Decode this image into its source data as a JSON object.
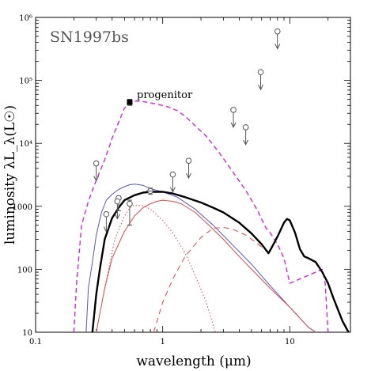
{
  "chart_data": {
    "type": "line",
    "object_label": "SN1997bs",
    "xlabel": "wavelength (μm)",
    "ylabel": "luminosity λL_λ(L☉)",
    "annotation": "progenitor",
    "x_scale": "log",
    "y_scale": "log",
    "xlim": [
      0.1,
      30
    ],
    "ylim": [
      10,
      1000000
    ],
    "grid": false,
    "x_ticks": [
      {
        "value": 0.1,
        "label": "0.1"
      },
      {
        "value": 1,
        "label": "1"
      },
      {
        "value": 10,
        "label": "10"
      }
    ],
    "y_ticks": [
      {
        "value": 10,
        "label": "10"
      },
      {
        "value": 100,
        "label": "100"
      },
      {
        "value": 1000,
        "label": "1000"
      },
      {
        "value": 10000,
        "label": "10⁴"
      },
      {
        "value": 100000,
        "label": "10⁵"
      },
      {
        "value": 1000000,
        "label": "10⁶"
      }
    ],
    "series": [
      {
        "color": "#dd22dd",
        "dash": "6,4",
        "width": 1.4,
        "points": [
          [
            0.2,
            10
          ],
          [
            0.21,
            60
          ],
          [
            0.23,
            500
          ],
          [
            0.26,
            1200
          ],
          [
            0.3,
            2600
          ],
          [
            0.35,
            5500
          ],
          [
            0.4,
            12000
          ],
          [
            0.46,
            24000
          ],
          [
            0.5,
            36000
          ],
          [
            0.55,
            45000
          ],
          [
            0.62,
            47000
          ],
          [
            0.7,
            46000
          ],
          [
            0.9,
            42000
          ],
          [
            1.1,
            38000
          ],
          [
            1.3,
            33000
          ],
          [
            1.5,
            27000
          ],
          [
            1.8,
            19000
          ],
          [
            2.2,
            13000
          ],
          [
            2.8,
            7000
          ],
          [
            3.5,
            3700
          ],
          [
            4.5,
            1800
          ],
          [
            5.5,
            900
          ],
          [
            6.5,
            450
          ],
          [
            7,
            380
          ],
          [
            8,
            250
          ],
          [
            9,
            150
          ],
          [
            10,
            60
          ],
          [
            14,
            80
          ],
          [
            18,
            100
          ],
          [
            19,
            60
          ],
          [
            20,
            10
          ]
        ]
      },
      {
        "color": "#5555cc",
        "dash": "",
        "width": 1,
        "points": [
          [
            0.25,
            10
          ],
          [
            0.26,
            50
          ],
          [
            0.28,
            130
          ],
          [
            0.3,
            350
          ],
          [
            0.33,
            800
          ],
          [
            0.36,
            1250
          ],
          [
            0.4,
            1550
          ],
          [
            0.45,
            1850
          ],
          [
            0.5,
            2050
          ],
          [
            0.55,
            2200
          ],
          [
            0.6,
            2250
          ],
          [
            0.7,
            2150
          ],
          [
            0.8,
            1900
          ],
          [
            1,
            1700
          ],
          [
            1.3,
            1400
          ],
          [
            1.8,
            900
          ],
          [
            2.5,
            500
          ],
          [
            3.5,
            250
          ],
          [
            5,
            120
          ],
          [
            7,
            55
          ],
          [
            10,
            25
          ],
          [
            14,
            12
          ],
          [
            16,
            10
          ]
        ]
      },
      {
        "color": "#ee4444",
        "dash": "",
        "width": 1,
        "points": [
          [
            0.3,
            10
          ],
          [
            0.35,
            50
          ],
          [
            0.4,
            150
          ],
          [
            0.5,
            400
          ],
          [
            0.6,
            700
          ],
          [
            0.7,
            950
          ],
          [
            0.8,
            1100
          ],
          [
            0.9,
            1200
          ],
          [
            1,
            1250
          ],
          [
            1.2,
            1200
          ],
          [
            1.4,
            1100
          ],
          [
            1.8,
            800
          ],
          [
            2.2,
            550
          ],
          [
            3,
            300
          ],
          [
            4,
            160
          ],
          [
            5,
            100
          ],
          [
            7,
            50
          ],
          [
            10,
            25
          ],
          [
            14,
            12
          ],
          [
            16,
            10
          ]
        ]
      },
      {
        "color": "#ee4444",
        "dash": "1.5,2.5",
        "width": 1,
        "points": [
          [
            0.35,
            50
          ],
          [
            0.42,
            300
          ],
          [
            0.5,
            700
          ],
          [
            0.55,
            950
          ],
          [
            0.6,
            1050
          ],
          [
            0.7,
            1020
          ],
          [
            0.8,
            900
          ],
          [
            1,
            600
          ],
          [
            1.2,
            380
          ],
          [
            1.5,
            180
          ],
          [
            1.8,
            80
          ],
          [
            2.2,
            30
          ],
          [
            2.6,
            10
          ]
        ]
      },
      {
        "color": "#ee4444",
        "dash": "7,5",
        "width": 1,
        "points": [
          [
            0.85,
            10
          ],
          [
            1,
            30
          ],
          [
            1.2,
            70
          ],
          [
            1.5,
            160
          ],
          [
            2,
            320
          ],
          [
            2.5,
            450
          ],
          [
            3,
            460
          ],
          [
            3.5,
            440
          ],
          [
            4.5,
            350
          ],
          [
            5.5,
            260
          ],
          [
            6.5,
            200
          ],
          [
            7,
            170
          ]
        ]
      },
      {
        "color": "#000000",
        "dash": "",
        "width": 2.4,
        "points": [
          [
            0.28,
            10
          ],
          [
            0.3,
            40
          ],
          [
            0.32,
            100
          ],
          [
            0.35,
            300
          ],
          [
            0.4,
            650
          ],
          [
            0.45,
            950
          ],
          [
            0.5,
            1250
          ],
          [
            0.6,
            1500
          ],
          [
            0.7,
            1650
          ],
          [
            0.8,
            1700
          ],
          [
            1,
            1700
          ],
          [
            1.2,
            1600
          ],
          [
            1.5,
            1400
          ],
          [
            2,
            1150
          ],
          [
            2.5,
            950
          ],
          [
            3,
            800
          ],
          [
            4,
            550
          ],
          [
            5,
            370
          ],
          [
            6,
            250
          ],
          [
            6.8,
            180
          ],
          [
            7.2,
            220
          ],
          [
            8,
            330
          ],
          [
            9,
            550
          ],
          [
            9.5,
            630
          ],
          [
            10,
            600
          ],
          [
            11,
            380
          ],
          [
            12,
            210
          ],
          [
            13,
            160
          ],
          [
            14,
            150
          ],
          [
            16,
            130
          ],
          [
            18,
            90
          ],
          [
            20,
            60
          ],
          [
            22,
            35
          ],
          [
            26,
            15
          ],
          [
            29,
            10
          ]
        ]
      }
    ],
    "measurements": [
      {
        "x": 0.55,
        "y": 1100,
        "err": [
          500,
          1250
        ],
        "marker": "circle"
      },
      {
        "x": 0.45,
        "y": 1350,
        "err": [
          850,
          1450
        ],
        "marker": "circle"
      },
      {
        "x": 0.8,
        "y": 1750,
        "err": [
          1550,
          1950
        ],
        "marker": "circle-cross"
      },
      {
        "x": 0.55,
        "y": 45000,
        "err": [
          40000,
          50000
        ],
        "marker": "square"
      }
    ],
    "upper_limits": [
      {
        "x": 0.3,
        "y": 4800
      },
      {
        "x": 0.36,
        "y": 750
      },
      {
        "x": 0.44,
        "y": 1200
      },
      {
        "x": 1.2,
        "y": 3200
      },
      {
        "x": 1.6,
        "y": 5300
      },
      {
        "x": 3.6,
        "y": 34000
      },
      {
        "x": 4.5,
        "y": 18000
      },
      {
        "x": 5.9,
        "y": 135000
      },
      {
        "x": 8.0,
        "y": 600000
      }
    ]
  }
}
